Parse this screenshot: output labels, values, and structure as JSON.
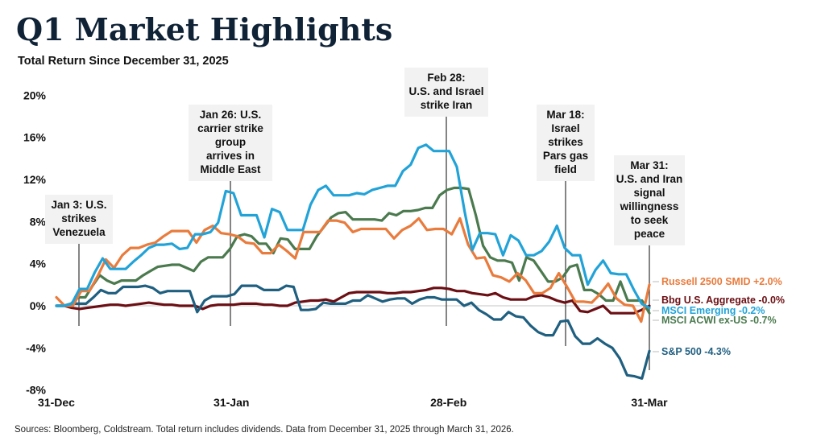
{
  "header": {
    "title": "Q1 Market Highlights",
    "subtitle": "Total Return Since December 31, 2025"
  },
  "footer": {
    "source": "Sources: Bloomberg, Coldstream. Total return includes dividends. Data from December 31, 2025 through March 31, 2026."
  },
  "chart_data": {
    "type": "line",
    "title": "Q1 Market Highlights",
    "subtitle": "Total Return Since December 31, 2025",
    "xlabel": "",
    "ylabel": "",
    "ylim": [
      -8,
      20
    ],
    "yticks": [
      20,
      16,
      12,
      8,
      4,
      0,
      -4,
      -8
    ],
    "ytick_labels": [
      "20%",
      "16%",
      "12%",
      "8%",
      "4%",
      "0%",
      "-4%",
      "-8%"
    ],
    "x_range_days": [
      0,
      62
    ],
    "xticks": [
      {
        "day": 0,
        "label": "31-Dec"
      },
      {
        "day": 18.3,
        "label": "31-Jan"
      },
      {
        "day": 41,
        "label": "28-Feb"
      },
      {
        "day": 62,
        "label": "31-Mar"
      }
    ],
    "grid": false,
    "legend": "right, end-of-line labels",
    "series": [
      {
        "name": "Russell 2500 SMID",
        "end_label": "Russell 2500 SMID +2.0%",
        "color": "#e97b3c",
        "values": [
          0.8,
          0,
          0,
          1.4,
          1.4,
          2.8,
          4.4,
          3.6,
          4.8,
          5.5,
          5.5,
          5.8,
          6.0,
          6.6,
          7.1,
          7.1,
          7.1,
          6.0,
          7.2,
          7.6,
          6.9,
          6.8,
          6.6,
          6.0,
          5.9,
          5.0,
          5.0,
          5.8,
          5.2,
          4.5,
          7.0,
          7.0,
          7.0,
          8.1,
          8.1,
          7.9,
          7.0,
          7.3,
          7.3,
          7.3,
          7.3,
          6.4,
          7.2,
          7.6,
          8.3,
          7.2,
          7.3,
          7.3,
          6.8,
          8.3,
          5.8,
          4.5,
          4.6,
          2.9,
          2.7,
          2.3,
          3.1,
          2.4,
          1.2,
          1.2,
          1.7,
          3.1,
          1.8,
          0.4,
          0.4,
          0.3,
          1.1,
          2.1,
          0.7,
          0.1,
          0,
          -1.5,
          2.0
        ]
      },
      {
        "name": "Bbg U.S. Aggregate",
        "end_label": "Bbg U.S. Aggregate -0.0%",
        "color": "#6b0f14",
        "values": [
          0,
          0,
          -0.2,
          -0.3,
          -0.2,
          -0.1,
          0,
          0.1,
          0.1,
          0,
          0.1,
          0.2,
          0.3,
          0.2,
          0.1,
          0.1,
          0,
          0,
          0,
          -0.3,
          0,
          0.1,
          0.1,
          0.1,
          0.2,
          0.2,
          0.2,
          0.1,
          0.1,
          0,
          0,
          0.3,
          0.4,
          0.5,
          0.5,
          0.6,
          0.4,
          0.8,
          1.2,
          1.3,
          1.3,
          1.3,
          1.3,
          1.2,
          1.2,
          1.3,
          1.3,
          1.4,
          1.5,
          1.7,
          1.7,
          1.6,
          1.4,
          1.4,
          1.2,
          1.1,
          1.0,
          1.2,
          0.8,
          0.6,
          0.6,
          0.6,
          0.9,
          1.0,
          0.8,
          0.5,
          0.3,
          0.5,
          -0.5,
          -0.6,
          -0.3,
          0,
          -0.7,
          -0.7,
          -0.7,
          -0.7,
          -0.4,
          0
        ]
      },
      {
        "name": "MSCI Emerging",
        "end_label": "MSCI Emerging -0.2%",
        "color": "#22a3d8",
        "values": [
          0,
          0,
          0.2,
          1.6,
          1.6,
          3.2,
          4.5,
          3.5,
          3.5,
          3.5,
          4.2,
          4.8,
          5.5,
          5.8,
          5.8,
          5.9,
          5.4,
          5.5,
          6.8,
          6.8,
          7.0,
          7.9,
          10.9,
          10.7,
          8.6,
          8.6,
          8.6,
          6.5,
          9.2,
          8.9,
          7.2,
          7.2,
          7.2,
          9.6,
          11.0,
          11.4,
          10.5,
          10.5,
          10.5,
          10.7,
          10.6,
          11.0,
          11.2,
          11.4,
          11.4,
          12.8,
          13.4,
          15.0,
          15.3,
          14.7,
          14.7,
          14.7,
          13.2,
          9.0,
          5.3,
          6.9,
          6.9,
          6.8,
          4.8,
          6.7,
          6.2,
          4.8,
          4.8,
          5.2,
          6.1,
          7.6,
          5.5,
          4.8,
          4.8,
          2.0,
          3.4,
          4.3,
          3.1,
          3.0,
          3.0,
          1.5,
          0.2,
          -0.2
        ]
      },
      {
        "name": "MSCI ACWI ex-US",
        "end_label": "MSCI ACWI ex-US -0.7%",
        "color": "#4a7a4e",
        "values": [
          0,
          0,
          0.2,
          0.8,
          0.8,
          1.9,
          2.9,
          2.4,
          2.1,
          2.4,
          2.4,
          2.4,
          2.9,
          3.3,
          3.7,
          3.8,
          3.9,
          3.9,
          3.6,
          3.3,
          4.2,
          4.6,
          4.6,
          4.6,
          5.4,
          6.6,
          6.8,
          6.6,
          5.9,
          5.9,
          5.0,
          6.4,
          6.3,
          5.4,
          5.4,
          5.4,
          6.6,
          7.5,
          8.4,
          8.8,
          8.9,
          8.2,
          8.2,
          8.2,
          8.2,
          8.1,
          8.8,
          8.6,
          9.0,
          9.0,
          9.1,
          9.3,
          9.3,
          10.5,
          11.0,
          11.2,
          11.2,
          11.1,
          8.6,
          5.7,
          4.6,
          4.3,
          4.3,
          4.1,
          2.4,
          4.6,
          4.3,
          3.3,
          2.3,
          2.3,
          2.7,
          3.7,
          3.9,
          1.5,
          1.5,
          1.1,
          0.5,
          0.5,
          2.3,
          0.5,
          0.5,
          0.5,
          -0.7
        ]
      },
      {
        "name": "S&P 500",
        "end_label": "S&P 500 -4.3%",
        "color": "#1f5f80",
        "values": [
          0,
          0,
          0.2,
          0.2,
          0.2,
          0.8,
          1.5,
          1.2,
          1.2,
          1.8,
          1.8,
          1.8,
          1.9,
          1.7,
          1.2,
          1.4,
          1.4,
          1.4,
          1.4,
          -0.6,
          0.5,
          0.9,
          0.9,
          0.9,
          1.1,
          1.9,
          1.9,
          1.9,
          1.5,
          1.5,
          1.5,
          1.9,
          1.8,
          -0.4,
          -0.4,
          -0.3,
          0.3,
          0.2,
          0.2,
          0.2,
          0.5,
          0.5,
          1.0,
          0.7,
          0.4,
          0.6,
          0.7,
          0.7,
          0.2,
          0.6,
          0.8,
          0.8,
          0.6,
          0.6,
          0.6,
          0.0,
          0.3,
          -0.4,
          -0.8,
          -1.3,
          -1.3,
          -0.6,
          -1.0,
          -1.1,
          -1.9,
          -2.5,
          -2.8,
          -2.8,
          -1.5,
          -1.4,
          -2.9,
          -3.6,
          -3.6,
          -3.1,
          -3.6,
          -4.0,
          -5.0,
          -6.6,
          -6.7,
          -6.9,
          -4.3
        ]
      }
    ],
    "annotations": [
      {
        "label": "Jan 3: U.S. strikes Venezuela",
        "lines": [
          "Jan 3: U.S.",
          "strikes",
          "Venezuela"
        ],
        "day": 2.3
      },
      {
        "label": "Jan 26: U.S. carrier strike group arrives in Middle East",
        "lines": [
          "Jan 26: U.S.",
          "carrier strike",
          "group",
          "arrives in",
          "Middle East"
        ],
        "day": 18.3
      },
      {
        "label": "Feb 28: U.S. and Israel strike Iran",
        "lines": [
          "Feb 28:",
          "U.S. and Israel",
          "strike Iran"
        ],
        "day": 41
      },
      {
        "label": "Mar 18: Israel strikes Pars gas field",
        "lines": [
          "Mar 18:",
          "Israel",
          "strikes",
          "Pars gas",
          "field"
        ],
        "day": 53.6
      },
      {
        "label": "Mar 31: U.S. and Iran signal willingness to seek peace",
        "lines": [
          "Mar 31:",
          "U.S. and Iran",
          "signal",
          "willingness",
          "to seek",
          "peace"
        ],
        "day": 62
      }
    ]
  }
}
